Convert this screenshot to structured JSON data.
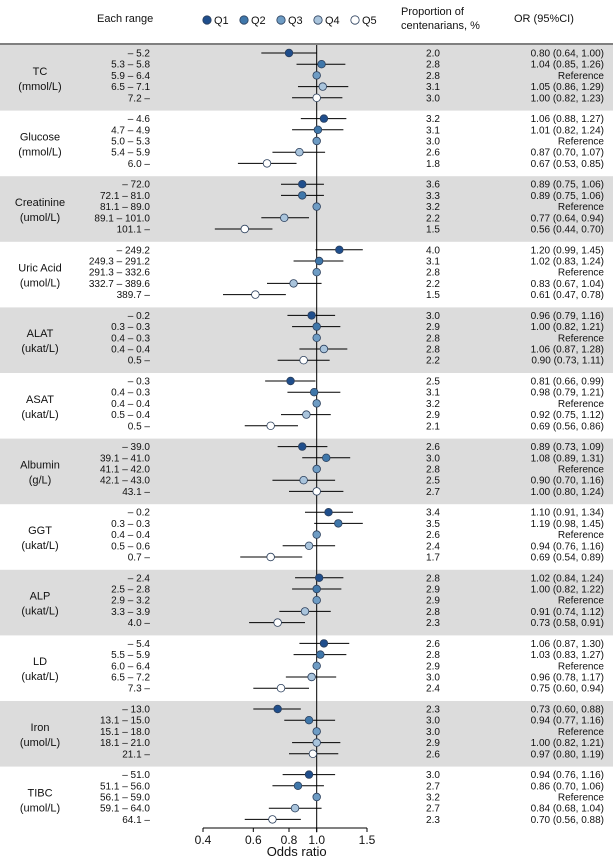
{
  "headers": {
    "each_range": "Each range",
    "proportion_line1": "Proportion of",
    "proportion_line2": "centenarians, %",
    "or": "OR (95%CI)"
  },
  "legend": [
    "Q1",
    "Q2",
    "Q3",
    "Q4",
    "Q5"
  ],
  "colors": {
    "q1": "#1f4e8c",
    "q2": "#3f77aa",
    "q3": "#6e9cc4",
    "q4": "#a9c4dc",
    "q5": "#ffffff",
    "shade": "#dcdcdc"
  },
  "chart_data": {
    "type": "forest",
    "xlabel": "Odds ratio",
    "x_ticks": [
      "0.4",
      "0.6",
      "0.8",
      "1.0",
      "1.5"
    ],
    "x_scale": "log",
    "xlim": [
      0.4,
      1.5
    ],
    "reference_line": 1.0,
    "groups": [
      {
        "label": [
          "TC",
          "(mmol/L)"
        ],
        "shaded": true,
        "rows": [
          {
            "range": "– 5.2",
            "pct": "2.0",
            "or": 0.8,
            "lo": 0.64,
            "hi": 1.0,
            "ci": "0.80 (0.64, 1.00)"
          },
          {
            "range": "5.3 – 5.8",
            "pct": "2.8",
            "or": 1.04,
            "lo": 0.85,
            "hi": 1.26,
            "ci": "1.04 (0.85, 1.26)"
          },
          {
            "range": "5.9 – 6.4",
            "pct": "2.8",
            "or": 1.0,
            "lo": null,
            "hi": null,
            "ci": "Reference"
          },
          {
            "range": "6.5 – 7.1",
            "pct": "3.1",
            "or": 1.05,
            "lo": 0.86,
            "hi": 1.29,
            "ci": "1.05 (0.86, 1.29)"
          },
          {
            "range": "7.2 –",
            "pct": "3.0",
            "or": 1.0,
            "lo": 0.82,
            "hi": 1.23,
            "ci": "1.00 (0.82, 1.23)"
          }
        ]
      },
      {
        "label": [
          "Glucose",
          "(mmol/L)"
        ],
        "shaded": false,
        "rows": [
          {
            "range": "– 4.6",
            "pct": "3.2",
            "or": 1.06,
            "lo": 0.88,
            "hi": 1.27,
            "ci": "1.06 (0.88, 1.27)"
          },
          {
            "range": "4.7 – 4.9",
            "pct": "3.1",
            "or": 1.01,
            "lo": 0.82,
            "hi": 1.24,
            "ci": "1.01 (0.82, 1.24)"
          },
          {
            "range": "5.0 – 5.3",
            "pct": "3.0",
            "or": 1.0,
            "lo": null,
            "hi": null,
            "ci": "Reference"
          },
          {
            "range": "5.4 – 5.9",
            "pct": "2.6",
            "or": 0.87,
            "lo": 0.7,
            "hi": 1.07,
            "ci": "0.87 (0.70, 1.07)"
          },
          {
            "range": "6.0 –",
            "pct": "1.8",
            "or": 0.67,
            "lo": 0.53,
            "hi": 0.85,
            "ci": "0.67 (0.53, 0.85)"
          }
        ]
      },
      {
        "label": [
          "Creatinine",
          "(umol/L)"
        ],
        "shaded": true,
        "rows": [
          {
            "range": "– 72.0",
            "pct": "3.6",
            "or": 0.89,
            "lo": 0.75,
            "hi": 1.06,
            "ci": "0.89 (0.75, 1.06)"
          },
          {
            "range": "72.1 – 81.0",
            "pct": "3.3",
            "or": 0.89,
            "lo": 0.75,
            "hi": 1.06,
            "ci": "0.89 (0.75, 1.06)"
          },
          {
            "range": "81.1 – 89.0",
            "pct": "3.2",
            "or": 1.0,
            "lo": null,
            "hi": null,
            "ci": "Reference"
          },
          {
            "range": "89.1 – 101.0",
            "pct": "2.2",
            "or": 0.77,
            "lo": 0.64,
            "hi": 0.94,
            "ci": "0.77 (0.64, 0.94)"
          },
          {
            "range": "101.1 –",
            "pct": "1.5",
            "or": 0.56,
            "lo": 0.44,
            "hi": 0.7,
            "ci": "0.56 (0.44, 0.70)"
          }
        ]
      },
      {
        "label": [
          "Uric Acid",
          "(umol/L)"
        ],
        "shaded": false,
        "rows": [
          {
            "range": "– 249.2",
            "pct": "4.0",
            "or": 1.2,
            "lo": 0.99,
            "hi": 1.45,
            "ci": "1.20 (0.99, 1.45)"
          },
          {
            "range": "249.3 – 291.2",
            "pct": "3.1",
            "or": 1.02,
            "lo": 0.83,
            "hi": 1.24,
            "ci": "1.02 (0.83, 1.24)"
          },
          {
            "range": "291.3 – 332.6",
            "pct": "2.8",
            "or": 1.0,
            "lo": null,
            "hi": null,
            "ci": "Reference"
          },
          {
            "range": "332.7 – 389.6",
            "pct": "2.2",
            "or": 0.83,
            "lo": 0.67,
            "hi": 1.04,
            "ci": "0.83 (0.67, 1.04)"
          },
          {
            "range": "389.7 –",
            "pct": "1.5",
            "or": 0.61,
            "lo": 0.47,
            "hi": 0.78,
            "ci": "0.61 (0.47, 0.78)"
          }
        ]
      },
      {
        "label": [
          "ALAT",
          "(ukat/L)"
        ],
        "shaded": true,
        "rows": [
          {
            "range": "– 0.2",
            "pct": "3.0",
            "or": 0.96,
            "lo": 0.79,
            "hi": 1.16,
            "ci": "0.96 (0.79, 1.16)"
          },
          {
            "range": "0.3 – 0.3",
            "pct": "2.9",
            "or": 1.0,
            "lo": 0.82,
            "hi": 1.21,
            "ci": "1.00 (0.82, 1.21)"
          },
          {
            "range": "0.4 – 0.3",
            "pct": "2.8",
            "or": 1.0,
            "lo": null,
            "hi": null,
            "ci": "Reference"
          },
          {
            "range": "0.4 – 0.4",
            "pct": "2.8",
            "or": 1.06,
            "lo": 0.87,
            "hi": 1.28,
            "ci": "1.06 (0.87, 1.28)"
          },
          {
            "range": "0.5 –",
            "pct": "2.2",
            "or": 0.9,
            "lo": 0.73,
            "hi": 1.11,
            "ci": "0.90 (0.73, 1.11)"
          }
        ]
      },
      {
        "label": [
          "ASAT",
          "(ukat/L)"
        ],
        "shaded": false,
        "rows": [
          {
            "range": "– 0.3",
            "pct": "2.5",
            "or": 0.81,
            "lo": 0.66,
            "hi": 0.99,
            "ci": "0.81 (0.66, 0.99)"
          },
          {
            "range": "0.4 – 0.3",
            "pct": "3.1",
            "or": 0.98,
            "lo": 0.79,
            "hi": 1.21,
            "ci": "0.98 (0.79, 1.21)"
          },
          {
            "range": "0.4 – 0.4",
            "pct": "3.2",
            "or": 1.0,
            "lo": null,
            "hi": null,
            "ci": "Reference"
          },
          {
            "range": "0.5 – 0.4",
            "pct": "2.9",
            "or": 0.92,
            "lo": 0.75,
            "hi": 1.12,
            "ci": "0.92 (0.75, 1.12)"
          },
          {
            "range": "0.5 –",
            "pct": "2.1",
            "or": 0.69,
            "lo": 0.56,
            "hi": 0.86,
            "ci": "0.69 (0.56, 0.86)"
          }
        ]
      },
      {
        "label": [
          "Albumin",
          "(g/L)"
        ],
        "shaded": true,
        "rows": [
          {
            "range": "– 39.0",
            "pct": "2.6",
            "or": 0.89,
            "lo": 0.73,
            "hi": 1.09,
            "ci": "0.89 (0.73, 1.09)"
          },
          {
            "range": "39.1 – 41.0",
            "pct": "3.0",
            "or": 1.08,
            "lo": 0.89,
            "hi": 1.31,
            "ci": "1.08 (0.89, 1.31)"
          },
          {
            "range": "41.1 – 42.0",
            "pct": "2.8",
            "or": 1.0,
            "lo": null,
            "hi": null,
            "ci": "Reference"
          },
          {
            "range": "42.1 – 43.0",
            "pct": "2.5",
            "or": 0.9,
            "lo": 0.7,
            "hi": 1.16,
            "ci": "0.90 (0.70, 1.16)"
          },
          {
            "range": "43.1 –",
            "pct": "2.7",
            "or": 1.0,
            "lo": 0.8,
            "hi": 1.24,
            "ci": "1.00 (0.80, 1.24)"
          }
        ]
      },
      {
        "label": [
          "GGT",
          "(ukat/L)"
        ],
        "shaded": false,
        "rows": [
          {
            "range": "– 0.2",
            "pct": "3.4",
            "or": 1.1,
            "lo": 0.91,
            "hi": 1.34,
            "ci": "1.10 (0.91, 1.34)"
          },
          {
            "range": "0.3 – 0.3",
            "pct": "3.5",
            "or": 1.19,
            "lo": 0.98,
            "hi": 1.45,
            "ci": "1.19 (0.98, 1.45)"
          },
          {
            "range": "0.4 – 0.4",
            "pct": "2.6",
            "or": 1.0,
            "lo": null,
            "hi": null,
            "ci": "Reference"
          },
          {
            "range": "0.5 – 0.6",
            "pct": "2.4",
            "or": 0.94,
            "lo": 0.76,
            "hi": 1.16,
            "ci": "0.94 (0.76, 1.16)"
          },
          {
            "range": "0.7 –",
            "pct": "1.7",
            "or": 0.69,
            "lo": 0.54,
            "hi": 0.89,
            "ci": "0.69 (0.54, 0.89)"
          }
        ]
      },
      {
        "label": [
          "ALP",
          "(ukat/L)"
        ],
        "shaded": true,
        "rows": [
          {
            "range": "– 2.4",
            "pct": "2.8",
            "or": 1.02,
            "lo": 0.84,
            "hi": 1.24,
            "ci": "1.02 (0.84, 1.24)"
          },
          {
            "range": "2.5 – 2.8",
            "pct": "2.9",
            "or": 1.0,
            "lo": 0.82,
            "hi": 1.22,
            "ci": "1.00 (0.82, 1.22)"
          },
          {
            "range": "2.9 – 3.2",
            "pct": "2.9",
            "or": 1.0,
            "lo": null,
            "hi": null,
            "ci": "Reference"
          },
          {
            "range": "3.3 – 3.9",
            "pct": "2.8",
            "or": 0.91,
            "lo": 0.74,
            "hi": 1.12,
            "ci": "0.91 (0.74, 1.12)"
          },
          {
            "range": "4.0 –",
            "pct": "2.3",
            "or": 0.73,
            "lo": 0.58,
            "hi": 0.91,
            "ci": "0.73 (0.58, 0.91)"
          }
        ]
      },
      {
        "label": [
          "LD",
          "(ukat/L)"
        ],
        "shaded": false,
        "rows": [
          {
            "range": "– 5.4",
            "pct": "2.6",
            "or": 1.06,
            "lo": 0.87,
            "hi": 1.3,
            "ci": "1.06 (0.87, 1.30)"
          },
          {
            "range": "5.5 – 5.9",
            "pct": "2.8",
            "or": 1.03,
            "lo": 0.83,
            "hi": 1.27,
            "ci": "1.03 (0.83, 1.27)"
          },
          {
            "range": "6.0 – 6.4",
            "pct": "2.9",
            "or": 1.0,
            "lo": null,
            "hi": null,
            "ci": "Reference"
          },
          {
            "range": "6.5 – 7.2",
            "pct": "3.0",
            "or": 0.96,
            "lo": 0.78,
            "hi": 1.17,
            "ci": "0.96 (0.78, 1.17)"
          },
          {
            "range": "7.3 –",
            "pct": "2.4",
            "or": 0.75,
            "lo": 0.6,
            "hi": 0.94,
            "ci": "0.75 (0.60, 0.94)"
          }
        ]
      },
      {
        "label": [
          "Iron",
          "(umol/L)"
        ],
        "shaded": true,
        "rows": [
          {
            "range": "– 13.0",
            "pct": "2.3",
            "or": 0.73,
            "lo": 0.6,
            "hi": 0.88,
            "ci": "0.73 (0.60, 0.88)"
          },
          {
            "range": "13.1 – 15.0",
            "pct": "3.0",
            "or": 0.94,
            "lo": 0.77,
            "hi": 1.16,
            "ci": "0.94 (0.77, 1.16)"
          },
          {
            "range": "15.1 – 18.0",
            "pct": "3.0",
            "or": 1.0,
            "lo": null,
            "hi": null,
            "ci": "Reference"
          },
          {
            "range": "18.1 – 21.0",
            "pct": "2.9",
            "or": 1.0,
            "lo": 0.82,
            "hi": 1.21,
            "ci": "1.00 (0.82, 1.21)"
          },
          {
            "range": "21.1 –",
            "pct": "2.6",
            "or": 0.97,
            "lo": 0.8,
            "hi": 1.19,
            "ci": "0.97 (0.80, 1.19)"
          }
        ]
      },
      {
        "label": [
          "TIBC",
          "(umol/L)"
        ],
        "shaded": false,
        "rows": [
          {
            "range": "– 51.0",
            "pct": "3.0",
            "or": 0.94,
            "lo": 0.76,
            "hi": 1.16,
            "ci": "0.94 (0.76, 1.16)"
          },
          {
            "range": "51.1 – 56.0",
            "pct": "2.7",
            "or": 0.86,
            "lo": 0.7,
            "hi": 1.06,
            "ci": "0.86 (0.70, 1.06)"
          },
          {
            "range": "56.1 – 59.0",
            "pct": "3.2",
            "or": 1.0,
            "lo": null,
            "hi": null,
            "ci": "Reference"
          },
          {
            "range": "59.1 – 64.0",
            "pct": "2.7",
            "or": 0.84,
            "lo": 0.68,
            "hi": 1.04,
            "ci": "0.84 (0.68, 1.04)"
          },
          {
            "range": "64.1 –",
            "pct": "2.3",
            "or": 0.7,
            "lo": 0.56,
            "hi": 0.88,
            "ci": "0.70 (0.56, 0.88)"
          }
        ]
      }
    ]
  }
}
